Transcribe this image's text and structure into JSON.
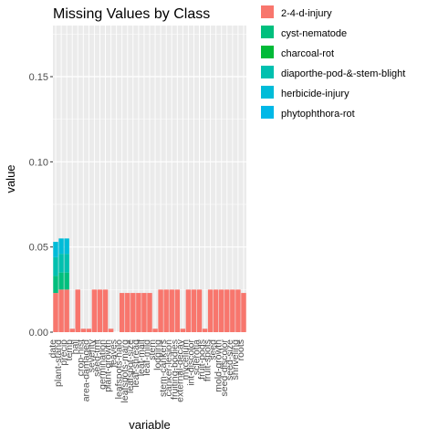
{
  "chart_data": {
    "type": "bar",
    "stacked": true,
    "title": "Missing Values by Class",
    "xlabel": "variable",
    "ylabel": "value",
    "ylim": [
      0,
      0.18
    ],
    "yticks": [
      "0.00",
      "0.05",
      "0.10",
      "0.15"
    ],
    "categories": [
      "date",
      "plant-stand",
      "precip",
      "temp",
      "hail",
      "crop-hist",
      "area-damaged",
      "severity",
      "seed-tmt",
      "germination",
      "plant-growth",
      "leaves",
      "leafspots-halo",
      "leafspots-marg",
      "leafspot-size",
      "leaf-shread",
      "leaf-malf",
      "leaf-mild",
      "stem",
      "lodging",
      "stem-cankers",
      "canker-lesion",
      "fruiting-bodies",
      "external-decay",
      "mycelium",
      "int-discolor",
      "sclerotia",
      "fruit-pods",
      "fruit-spots",
      "seed",
      "mold-growth",
      "seed-discolor",
      "seed-size",
      "shriveling",
      "roots"
    ],
    "series": [
      {
        "name": "2-4-d-injury",
        "color": "#F8766D",
        "values": [
          0.023,
          0.025,
          0.025,
          0.002,
          0.025,
          0.002,
          0.002,
          0.025,
          0.025,
          0.025,
          0.002,
          0.0,
          0.023,
          0.023,
          0.023,
          0.023,
          0.023,
          0.023,
          0.002,
          0.025,
          0.025,
          0.025,
          0.025,
          0.002,
          0.025,
          0.025,
          0.025,
          0.002,
          0.025,
          0.025,
          0.025,
          0.025,
          0.025,
          0.025,
          0.023
        ]
      },
      {
        "name": "cyst-nematode",
        "color": "#00BF7D",
        "values": [
          0.01,
          0.01,
          0.01,
          0.0,
          0.0,
          0.0,
          0.0,
          0.0,
          0.0,
          0.0,
          0.0,
          0.0,
          0.0,
          0.0,
          0.0,
          0.0,
          0.0,
          0.0,
          0.0,
          0.0,
          0.0,
          0.0,
          0.0,
          0.0,
          0.0,
          0.0,
          0.0,
          0.0,
          0.0,
          0.0,
          0.0,
          0.0,
          0.0,
          0.0,
          0.0
        ]
      },
      {
        "name": "charcoal-rot",
        "color": "#00BA38",
        "values": [
          0.0,
          0.0,
          0.0,
          0.0,
          0.0,
          0.0,
          0.0,
          0.0,
          0.0,
          0.0,
          0.0,
          0.0,
          0.0,
          0.0,
          0.0,
          0.0,
          0.0,
          0.0,
          0.0,
          0.0,
          0.0,
          0.0,
          0.0,
          0.0,
          0.0,
          0.0,
          0.0,
          0.0,
          0.0,
          0.0,
          0.0,
          0.0,
          0.0,
          0.0,
          0.0
        ]
      },
      {
        "name": "diaporthe-pod-&-stem-blight",
        "color": "#00C0AF",
        "values": [
          0.011,
          0.011,
          0.011,
          0.0,
          0.0,
          0.0,
          0.0,
          0.0,
          0.0,
          0.0,
          0.0,
          0.0,
          0.0,
          0.0,
          0.0,
          0.0,
          0.0,
          0.0,
          0.0,
          0.0,
          0.0,
          0.0,
          0.0,
          0.0,
          0.0,
          0.0,
          0.0,
          0.0,
          0.0,
          0.0,
          0.0,
          0.0,
          0.0,
          0.0,
          0.0
        ]
      },
      {
        "name": "herbicide-injury",
        "color": "#00BCD8",
        "values": [
          0.009,
          0.009,
          0.009,
          0.0,
          0.0,
          0.0,
          0.0,
          0.0,
          0.0,
          0.0,
          0.0,
          0.0,
          0.0,
          0.0,
          0.0,
          0.0,
          0.0,
          0.0,
          0.0,
          0.0,
          0.0,
          0.0,
          0.0,
          0.0,
          0.0,
          0.0,
          0.0,
          0.0,
          0.0,
          0.0,
          0.0,
          0.0,
          0.0,
          0.0,
          0.0
        ]
      },
      {
        "name": "phytophthora-rot",
        "color": "#00B8E7",
        "values": [
          0.0,
          0.0,
          0.0,
          0.0,
          0.0,
          0.0,
          0.0,
          0.0,
          0.0,
          0.0,
          0.0,
          0.0,
          0.0,
          0.0,
          0.0,
          0.0,
          0.0,
          0.0,
          0.0,
          0.0,
          0.0,
          0.0,
          0.0,
          0.0,
          0.0,
          0.0,
          0.0,
          0.0,
          0.0,
          0.0,
          0.0,
          0.0,
          0.0,
          0.0,
          0.0
        ]
      }
    ]
  }
}
